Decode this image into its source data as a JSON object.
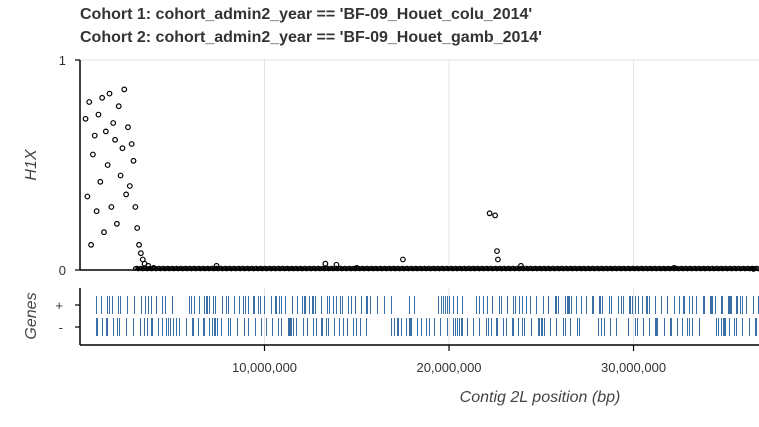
{
  "title": {
    "line1": "Cohort 1: cohort_admin2_year == 'BF-09_Houet_colu_2014'",
    "line2": "Cohort 2: cohort_admin2_year == 'BF-09_Houet_gamb_2014'"
  },
  "chart_data": [
    {
      "type": "scatter",
      "ylabel": "H1X",
      "ylim": [
        0,
        1
      ],
      "yticks": [
        "0",
        "1"
      ],
      "xlim": [
        0,
        36800000
      ],
      "grid": true,
      "marker": "open circle",
      "marker_color": "#000000",
      "points": [
        [
          300000,
          0.72
        ],
        [
          400000,
          0.35
        ],
        [
          500000,
          0.8
        ],
        [
          600000,
          0.12
        ],
        [
          700000,
          0.55
        ],
        [
          800000,
          0.64
        ],
        [
          900000,
          0.28
        ],
        [
          1000000,
          0.74
        ],
        [
          1100000,
          0.42
        ],
        [
          1200000,
          0.82
        ],
        [
          1300000,
          0.18
        ],
        [
          1400000,
          0.66
        ],
        [
          1500000,
          0.5
        ],
        [
          1600000,
          0.84
        ],
        [
          1700000,
          0.3
        ],
        [
          1800000,
          0.7
        ],
        [
          1900000,
          0.62
        ],
        [
          2000000,
          0.22
        ],
        [
          2100000,
          0.78
        ],
        [
          2200000,
          0.45
        ],
        [
          2300000,
          0.58
        ],
        [
          2400000,
          0.86
        ],
        [
          2500000,
          0.36
        ],
        [
          2600000,
          0.68
        ],
        [
          2700000,
          0.4
        ],
        [
          2800000,
          0.6
        ],
        [
          2900000,
          0.52
        ],
        [
          3000000,
          0.3
        ],
        [
          3100000,
          0.2
        ],
        [
          3200000,
          0.12
        ],
        [
          3300000,
          0.08
        ],
        [
          3400000,
          0.05
        ],
        [
          3500000,
          0.03
        ],
        [
          3700000,
          0.02
        ],
        [
          4000000,
          0.01
        ],
        [
          7400000,
          0.02
        ],
        [
          13300000,
          0.03
        ],
        [
          13900000,
          0.025
        ],
        [
          15000000,
          0.01
        ],
        [
          17500000,
          0.05
        ],
        [
          22200000,
          0.27
        ],
        [
          22500000,
          0.26
        ],
        [
          22600000,
          0.09
        ],
        [
          22650000,
          0.05
        ],
        [
          23900000,
          0.02
        ],
        [
          32200000,
          0.01
        ],
        [
          36500000,
          0.005
        ]
      ]
    },
    {
      "type": "gene-track",
      "ylabel": "Genes",
      "strand_labels": [
        "+",
        "-"
      ],
      "gene_color": "#3a6ea5"
    }
  ],
  "x_axis": {
    "label": "Contig 2L position (bp)",
    "ticks": [
      {
        "value": 10000000,
        "label": "10,000,000"
      },
      {
        "value": 20000000,
        "label": "20,000,000"
      },
      {
        "value": 30000000,
        "label": "30,000,000"
      }
    ]
  }
}
